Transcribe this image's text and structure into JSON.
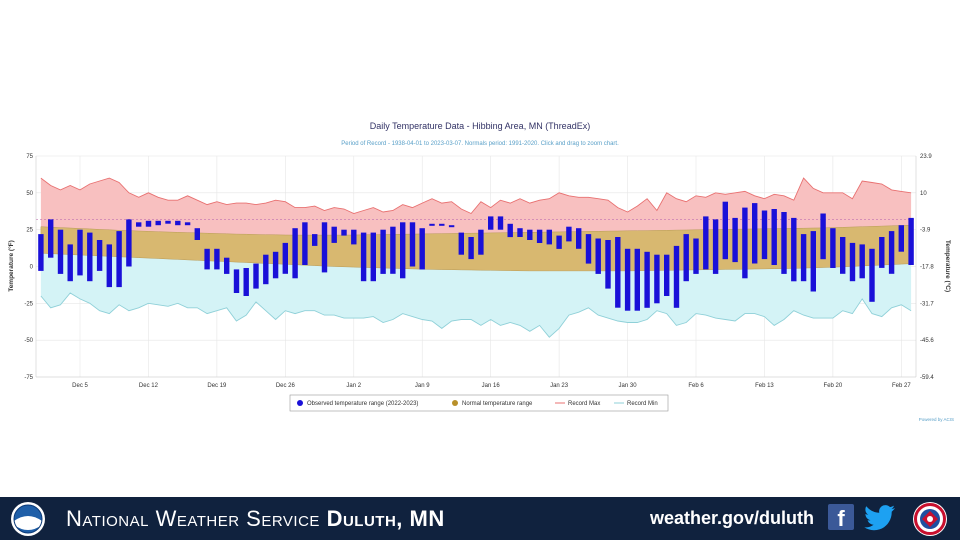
{
  "chart_data": {
    "type": "bar",
    "title": "Daily Temperature Data - Hibbing Area, MN (ThreadEx)",
    "subtitle": "Period of Record - 1938-04-01 to 2023-03-07. Normals period: 1991-2020. Click and drag to zoom chart.",
    "ylabel": "Temperature (°F)",
    "ylabel_right": "Temperature (°C)",
    "ylim": [
      -75,
      75
    ],
    "yticks": [
      75,
      50,
      25,
      0,
      -25,
      -50,
      -75
    ],
    "yticks_right": [
      "23.9",
      "10",
      "-3.9",
      "-17.8",
      "-31.7",
      "-45.6",
      "-59.4"
    ],
    "x_tick_labels": [
      "Dec 5",
      "Dec 12",
      "Dec 19",
      "Dec 26",
      "Jan 2",
      "Jan 9",
      "Jan 16",
      "Jan 23",
      "Jan 30",
      "Feb 6",
      "Feb 13",
      "Feb 20",
      "Feb 27"
    ],
    "x_tick_days": [
      5,
      12,
      19,
      26,
      33,
      40,
      47,
      54,
      61,
      68,
      75,
      82,
      89
    ],
    "x_range_days": [
      0.5,
      90.5
    ],
    "reference_line": 32,
    "legend": [
      "Observed temperature range (2022-2023)",
      "Normal temperature range",
      "Record Max",
      "Record Min"
    ],
    "legend_position": "bottom",
    "credit": "Powered by ACIS",
    "colors": {
      "observed": "#1a10d8",
      "normal": "#d8b870",
      "record_max_line": "#e87070",
      "record_max_fill": "#f8c0c0",
      "record_min_line": "#8fd0d8",
      "record_min_fill": "#d4f3f6",
      "reference": "#c070b0"
    },
    "observed": {
      "high": [
        22,
        32,
        25,
        15,
        25,
        23,
        18,
        15,
        24,
        32,
        30,
        31,
        31,
        31,
        31,
        30,
        26,
        12,
        12,
        6,
        -2,
        -1,
        2,
        8,
        10,
        16,
        26,
        30,
        22,
        30,
        27,
        25,
        25,
        23,
        23,
        25,
        27,
        30,
        30,
        26,
        29,
        29,
        28,
        23,
        20,
        25,
        34,
        34,
        29,
        26,
        25,
        25,
        25,
        21,
        27,
        26,
        22,
        19,
        18,
        20,
        12,
        12,
        10,
        8,
        8,
        14,
        22,
        19,
        34,
        32,
        44,
        33,
        40,
        43,
        38,
        39,
        37,
        33,
        22,
        24,
        36,
        26,
        20,
        16,
        15,
        12,
        20,
        24,
        28,
        33
      ],
      "low": [
        -3,
        6,
        -5,
        -10,
        -6,
        -10,
        -3,
        -14,
        -14,
        0,
        27,
        27,
        28,
        29,
        28,
        28,
        18,
        -2,
        -2,
        -5,
        -18,
        -20,
        -15,
        -12,
        -8,
        -5,
        -8,
        1,
        14,
        -4,
        16,
        21,
        15,
        -10,
        -10,
        -5,
        -5,
        -8,
        0,
        -2,
        28,
        28,
        28,
        8,
        5,
        8,
        25,
        25,
        20,
        20,
        18,
        16,
        15,
        12,
        17,
        12,
        2,
        -5,
        -15,
        -28,
        -30,
        -30,
        -28,
        -25,
        -20,
        -28,
        -10,
        -5,
        -2,
        -5,
        5,
        3,
        -8,
        2,
        5,
        1,
        -5,
        -10,
        -10,
        -17,
        5,
        -1,
        -5,
        -10,
        -8,
        -24,
        -1,
        -5,
        10,
        1
      ]
    },
    "normal": {
      "high": [
        27,
        26.7,
        26.4,
        26.1,
        25.8,
        25.5,
        25.2,
        24.9,
        24.6,
        24.4,
        24.1,
        23.9,
        23.6,
        23.4,
        23.2,
        23,
        22.8,
        22.6,
        22.4,
        22.2,
        22,
        21.9,
        21.7,
        21.6,
        21.5,
        21.4,
        21.3,
        21.3,
        21.3,
        21.3,
        21.3,
        21.3,
        21.4,
        21.5,
        21.6,
        21.7,
        21.8,
        21.9,
        22,
        22.1,
        22.2,
        22.3,
        22.4,
        22.5,
        22.6,
        22.7,
        22.8,
        22.9,
        23,
        23.1,
        23.2,
        23.3,
        23.4,
        23.5,
        23.6,
        23.7,
        23.8,
        23.9,
        24,
        24.1,
        24.2,
        24.3,
        24.4,
        24.5,
        24.6,
        24.7,
        24.8,
        24.9,
        25,
        25.1,
        25.2,
        25.3,
        25.4,
        25.5,
        25.6,
        25.7,
        25.8,
        25.9,
        26,
        26.1,
        26.2,
        26.4,
        26.6,
        26.8,
        27,
        27.2,
        27.4,
        27.6,
        27.8,
        28
      ],
      "low": [
        9,
        8.7,
        8.4,
        8.1,
        7.8,
        7.5,
        7.2,
        6.9,
        6.6,
        6.3,
        6,
        5.7,
        5.4,
        5.1,
        4.8,
        4.5,
        4.2,
        3.9,
        3.6,
        3.3,
        3,
        2.7,
        2.4,
        2.1,
        1.8,
        1.5,
        1.2,
        0.9,
        0.6,
        0.3,
        0,
        -0.2,
        -0.4,
        -0.6,
        -0.8,
        -1,
        -1.2,
        -1.4,
        -1.6,
        -1.8,
        -2,
        -2.1,
        -2.2,
        -2.3,
        -2.4,
        -2.5,
        -2.6,
        -2.7,
        -2.8,
        -2.9,
        -3,
        -3,
        -3,
        -3,
        -3,
        -3,
        -3,
        -3,
        -3,
        -3,
        -3,
        -2.9,
        -2.8,
        -2.7,
        -2.6,
        -2.5,
        -2.4,
        -2.3,
        -2.2,
        -2.1,
        -2,
        -1.9,
        -1.8,
        -1.7,
        -1.6,
        -1.5,
        -1.4,
        -1.3,
        -1.1,
        -0.9,
        -0.7,
        -0.5,
        -0.2,
        0.1,
        0.4,
        0.7,
        1,
        1.3,
        1.6,
        1.9
      ]
    },
    "record_max": [
      60,
      55,
      52,
      55,
      52,
      56,
      58,
      60,
      57,
      50,
      47,
      50,
      47,
      45,
      45,
      48,
      45,
      42,
      44,
      42,
      43,
      43,
      42,
      43,
      45,
      44,
      40,
      40,
      41,
      38,
      40,
      39,
      36,
      38,
      40,
      37,
      38,
      42,
      40,
      43,
      46,
      43,
      44,
      39,
      36,
      44,
      40,
      45,
      43,
      46,
      43,
      45,
      46,
      50,
      48,
      47,
      47,
      46,
      45,
      40,
      37,
      41,
      46,
      38,
      50,
      46,
      44,
      48,
      47,
      50,
      49,
      50,
      51,
      48,
      46,
      49,
      48,
      45,
      60,
      53,
      50,
      50,
      50,
      46,
      58,
      57,
      56,
      52,
      51,
      50
    ],
    "record_min": [
      -20,
      -28,
      -26,
      -18,
      -22,
      -25,
      -30,
      -32,
      -26,
      -30,
      -28,
      -25,
      -26,
      -27,
      -25,
      -28,
      -28,
      -32,
      -30,
      -28,
      -37,
      -33,
      -24,
      -30,
      -36,
      -30,
      -32,
      -30,
      -30,
      -33,
      -33,
      -35,
      -35,
      -35,
      -34,
      -38,
      -36,
      -32,
      -34,
      -36,
      -37,
      -42,
      -37,
      -36,
      -36,
      -40,
      -36,
      -40,
      -38,
      -40,
      -44,
      -40,
      -48,
      -42,
      -33,
      -31,
      -28,
      -33,
      -35,
      -37,
      -38,
      -38,
      -36,
      -30,
      -32,
      -40,
      -38,
      -32,
      -33,
      -35,
      -36,
      -37,
      -32,
      -32,
      -34,
      -40,
      -36,
      -30,
      -33,
      -35,
      -35,
      -35,
      -30,
      -32,
      -22,
      -32,
      -34,
      -28,
      -26,
      -30
    ]
  },
  "footer": {
    "org_prefix": "National Weather Service",
    "office": "Duluth, MN",
    "website": "weather.gov/duluth",
    "facebook_icon_glyph": "f",
    "icons": [
      "noaa-logo",
      "facebook-icon",
      "twitter-icon",
      "nws-logo"
    ]
  }
}
